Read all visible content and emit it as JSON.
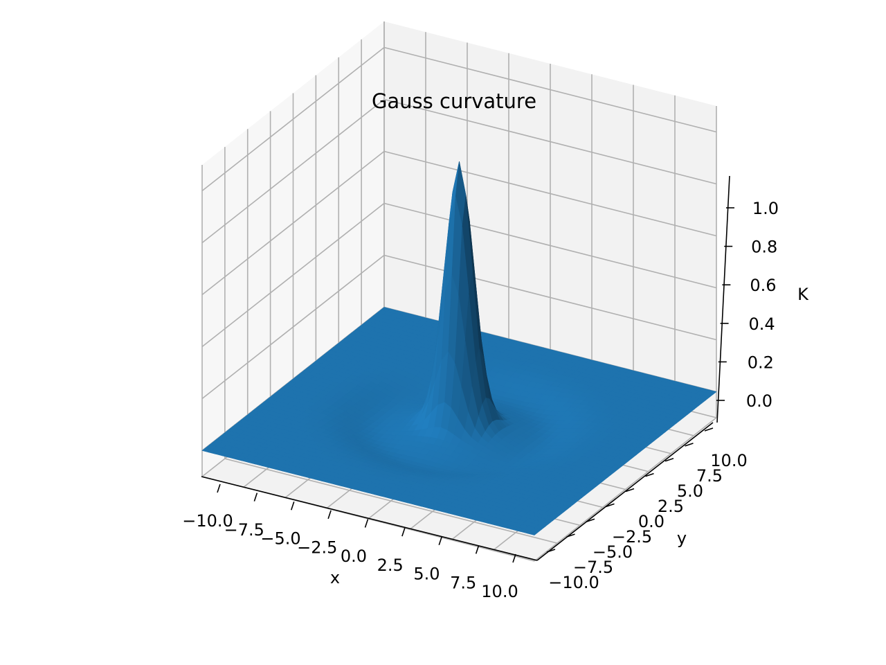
{
  "chart_data": {
    "type": "surface3d",
    "title": "Gauss curvature",
    "xlabel": "x",
    "ylabel": "y",
    "zlabel": "K",
    "xlim": [
      -10,
      10
    ],
    "ylim": [
      -10,
      10
    ],
    "zlim": [
      -0.1,
      1.1
    ],
    "xticks": [
      -10,
      -7.5,
      -5,
      -2.5,
      0,
      2.5,
      5,
      7.5,
      10
    ],
    "yticks": [
      -10,
      -7.5,
      -5,
      -2.5,
      0,
      2.5,
      5,
      7.5,
      10
    ],
    "zticks": [
      0,
      0.2,
      0.4,
      0.6,
      0.8,
      1.0
    ],
    "xtick_labels": [
      "−10.0",
      "−7.5",
      "−5.0",
      "−2.5",
      "0.0",
      "2.5",
      "5.0",
      "7.5",
      "10.0"
    ],
    "ytick_labels": [
      "−10.0",
      "−7.5",
      "−5.0",
      "−2.5",
      "0.0",
      "2.5",
      "5.0",
      "7.5",
      "10.0"
    ],
    "ztick_labels": [
      "0.0",
      "0.2",
      "0.4",
      "0.6",
      "0.8",
      "1.0"
    ],
    "surface_color": "#1f77b4",
    "pane_colors": [
      "#f2f2f2",
      "#ebebeb",
      "#f7f7f7"
    ],
    "grid": true,
    "peak": {
      "x": 0,
      "y": 0,
      "K": 1.0
    }
  }
}
